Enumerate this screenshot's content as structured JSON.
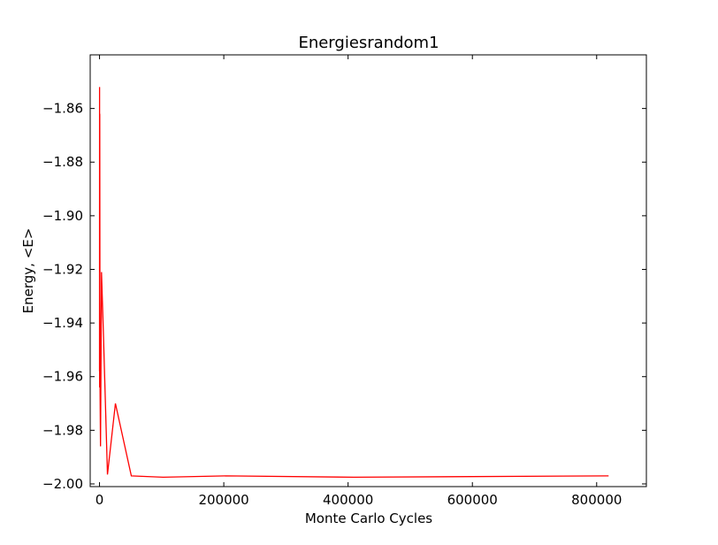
{
  "chart_data": {
    "type": "line",
    "title": "Energiesrandom1",
    "xlabel": "Monte Carlo Cycles",
    "ylabel": "Energy, <E>",
    "xlim": [
      -15000,
      880000
    ],
    "ylim": [
      -2.001,
      -1.84
    ],
    "grid": false,
    "legend": "none",
    "xticks": [
      0,
      200000,
      400000,
      600000,
      800000
    ],
    "xtick_labels": [
      "0",
      "200000",
      "400000",
      "600000",
      "800000"
    ],
    "yticks": [
      -2.0,
      -1.98,
      -1.96,
      -1.94,
      -1.92,
      -1.9,
      -1.88,
      -1.86
    ],
    "ytick_labels": [
      "−2.00",
      "−1.98",
      "−1.96",
      "−1.94",
      "−1.92",
      "−1.90",
      "−1.88",
      "−1.86"
    ],
    "series": [
      {
        "color": "#ff0000",
        "x": [
          0,
          100,
          200,
          400,
          800,
          1600,
          3200,
          6400,
          12800,
          25600,
          51200,
          102400,
          204800,
          409600,
          819200
        ],
        "y": [
          -1.958,
          -1.852,
          -1.964,
          -1.862,
          -1.962,
          -1.986,
          -1.921,
          -1.945,
          -1.9965,
          -1.97,
          -1.997,
          -1.9975,
          -1.997,
          -1.9975,
          -1.997
        ]
      }
    ]
  }
}
